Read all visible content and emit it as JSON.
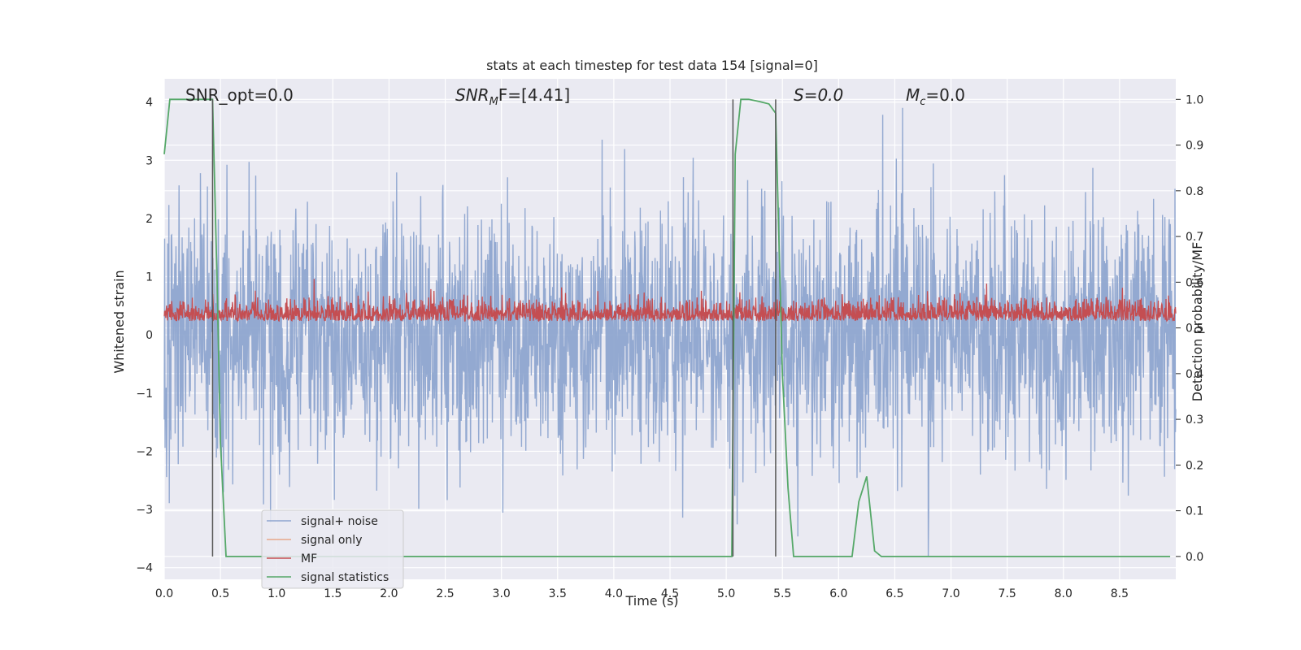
{
  "chart_data": {
    "type": "line",
    "title": "stats at each timestep for test data 154 [signal=0]",
    "xlabel": "Time (s)",
    "ylabel": "Whitened strain",
    "y2label": "Detection probability/MF",
    "xlim": [
      0.0,
      9.0
    ],
    "ylim": [
      -4.2,
      4.4
    ],
    "y2lim": [
      -0.05,
      1.045
    ],
    "x_ticks": [
      "0.0",
      "0.5",
      "1.0",
      "1.5",
      "2.0",
      "2.5",
      "3.0",
      "3.5",
      "4.0",
      "4.5",
      "5.0",
      "5.5",
      "6.0",
      "6.5",
      "7.0",
      "7.5",
      "8.0",
      "8.5"
    ],
    "y_ticks": [
      "4",
      "3",
      "2",
      "1",
      "0",
      "−1",
      "−2",
      "−3",
      "−4"
    ],
    "y2_ticks": [
      "1.0",
      "0.9",
      "0.8",
      "0.7",
      "0.6",
      "0.5",
      "0.4",
      "0.3",
      "0.2",
      "0.1",
      "0.0"
    ],
    "grid": true,
    "legend_position": "lower-left",
    "annotations": {
      "snr_opt": "SNR_opt=0.0",
      "snr_mf_base": "SNR",
      "snr_mf_sub": "M",
      "snr_mf_rest": "F=[4.41]",
      "s": "S=0.0",
      "mc_base": "M",
      "mc_sub": "c",
      "mc_rest": "=0.0"
    },
    "vertical_lines_x": [
      0.43,
      5.06,
      5.44
    ],
    "series": [
      {
        "name": "signal+ noise",
        "color": "#8ea5cf",
        "axis": "left",
        "description_values": {
          "typical_range": [
            -2.5,
            2.5
          ],
          "extremes": [
            -3.8,
            3.9
          ]
        }
      },
      {
        "name": "signal only",
        "color": "#e8a88a",
        "axis": "left"
      },
      {
        "name": "MF",
        "color": "#c44e52",
        "axis": "right",
        "description_values": {
          "typical_range": [
            0.5,
            0.58
          ],
          "extremes": [
            0.5,
            0.62
          ]
        }
      },
      {
        "name": "signal statistics",
        "color": "#55a868",
        "axis": "right",
        "x": [
          0.0,
          0.05,
          0.1,
          0.2,
          0.3,
          0.4,
          0.43,
          0.47,
          0.5,
          0.55,
          1.0,
          2.0,
          3.0,
          4.0,
          5.0,
          5.05,
          5.08,
          5.13,
          5.2,
          5.3,
          5.38,
          5.44,
          5.5,
          5.55,
          5.6,
          6.0,
          6.12,
          6.18,
          6.25,
          6.32,
          6.38,
          7.0,
          8.0,
          8.95
        ],
        "values": [
          0.88,
          1.0,
          1.0,
          1.0,
          1.0,
          1.0,
          1.0,
          0.6,
          0.25,
          0.0,
          0.0,
          0.0,
          0.0,
          0.0,
          0.0,
          0.0,
          0.88,
          1.0,
          1.0,
          0.995,
          0.99,
          0.97,
          0.4,
          0.15,
          0.0,
          0.0,
          0.0,
          0.12,
          0.175,
          0.012,
          0.0,
          0.0,
          0.0,
          0.0
        ]
      }
    ]
  },
  "colors": {
    "plot_background": "#eaeaf2",
    "grid": "#ffffff",
    "vline": "#555555"
  }
}
